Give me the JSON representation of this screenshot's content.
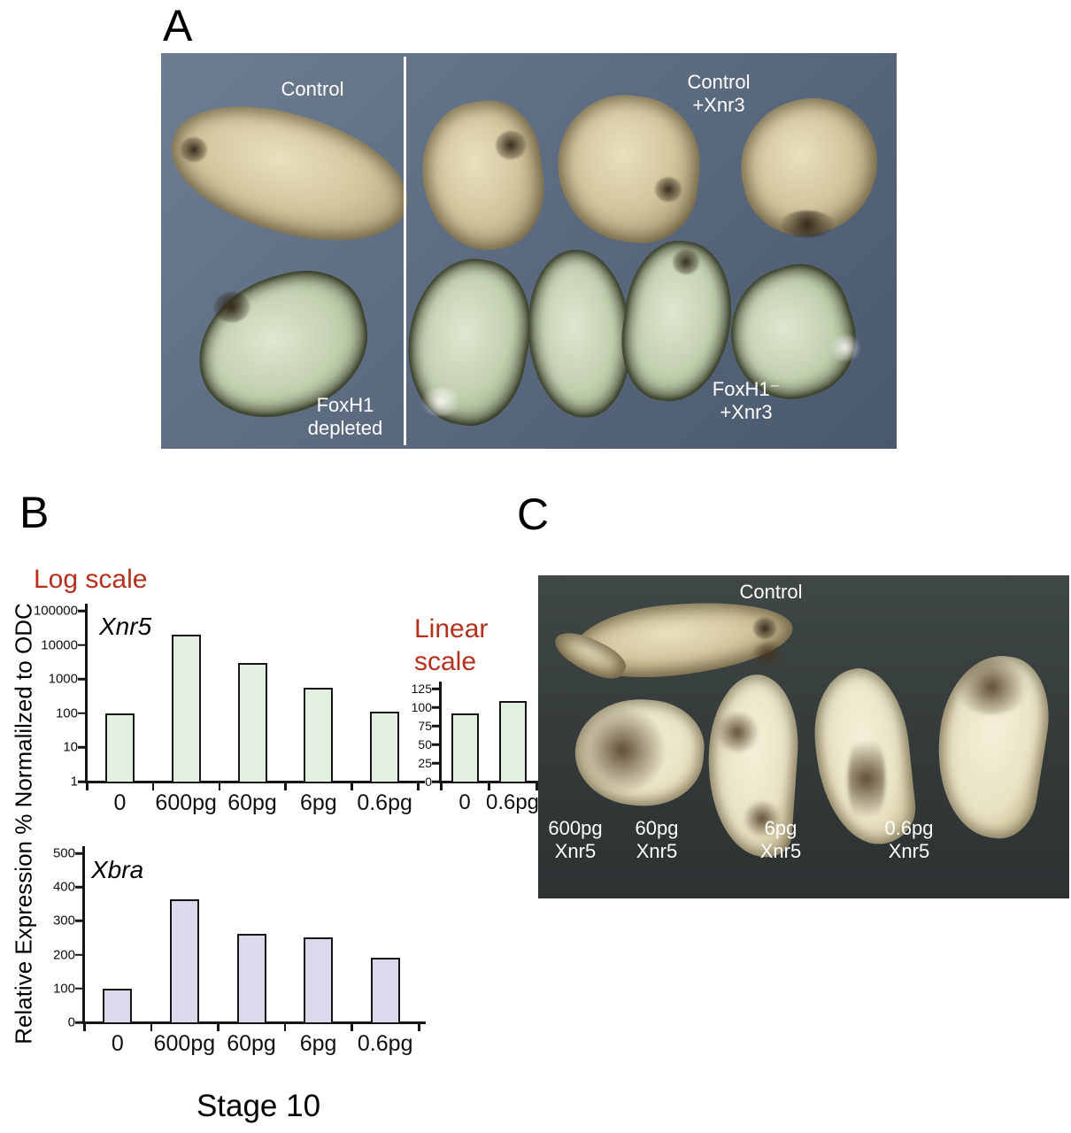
{
  "figure": {
    "panel_a": {
      "label": "A",
      "annotations": {
        "control": "Control",
        "control_xnr3_line1": "Control",
        "control_xnr3_line2": "+Xnr3",
        "foxh1_depleted_line1": "FoxH1",
        "foxh1_depleted_line2": "depleted",
        "foxh1_xnr3_line1": "FoxH1⁻",
        "foxh1_xnr3_line2": "+Xnr3"
      }
    },
    "panel_b": {
      "label": "B",
      "log_scale_title": "Log scale",
      "linear_scale_title_line1": "Linear",
      "linear_scale_title_line2": "scale",
      "y_axis_label": "Relative Expression % Normalilzed to ODC",
      "stage_label": "Stage 10"
    },
    "panel_c": {
      "label": "C",
      "annotations": {
        "control": "Control",
        "doses": [
          {
            "line1": "600pg",
            "line2": "Xnr5"
          },
          {
            "line1": "60pg",
            "line2": "Xnr5"
          },
          {
            "line1": "6pg",
            "line2": "Xnr5"
          },
          {
            "line1": "0.6pg",
            "line2": "Xnr5"
          }
        ]
      }
    }
  },
  "colors": {
    "accent_red": "#b5301c",
    "bar_green": "#e3efdf",
    "bar_lavender": "#dadaec",
    "photo_a_background": "#5d6c81",
    "photo_c_background": "#343a3a"
  },
  "chart_data": [
    {
      "id": "xnr5_log",
      "type": "bar",
      "title": "Xnr5",
      "scale": "log",
      "categories": [
        "0",
        "600pg",
        "60pg",
        "6pg",
        "0.6pg"
      ],
      "values": [
        100,
        20000,
        3000,
        550,
        110
      ],
      "y_ticks": [
        1,
        10,
        100,
        1000,
        10000,
        100000
      ],
      "ylim": [
        1,
        100000
      ],
      "xlabel": "",
      "ylabel": "Relative Expression % Normalilzed to ODC",
      "grid": false,
      "legend": "none",
      "bar_color": "#e3efdf"
    },
    {
      "id": "linear_inset",
      "type": "bar",
      "title": "Linear scale",
      "scale": "linear",
      "categories": [
        "0",
        "0.6pg"
      ],
      "values": [
        92,
        108
      ],
      "y_ticks": [
        0,
        25,
        50,
        75,
        100,
        125
      ],
      "ylim": [
        0,
        125
      ],
      "xlabel": "",
      "ylabel": "",
      "grid": false,
      "legend": "none",
      "bar_color": "#e3efdf"
    },
    {
      "id": "xbra_linear",
      "type": "bar",
      "title": "Xbra",
      "scale": "linear",
      "categories": [
        "0",
        "600pg",
        "60pg",
        "6pg",
        "0.6pg"
      ],
      "values": [
        100,
        365,
        262,
        252,
        190
      ],
      "y_ticks": [
        0,
        100,
        200,
        300,
        400,
        500
      ],
      "ylim": [
        0,
        500
      ],
      "xlabel": "",
      "ylabel": "Relative Expression % Normalilzed to ODC",
      "grid": false,
      "legend": "none",
      "bar_color": "#dadaec"
    }
  ]
}
